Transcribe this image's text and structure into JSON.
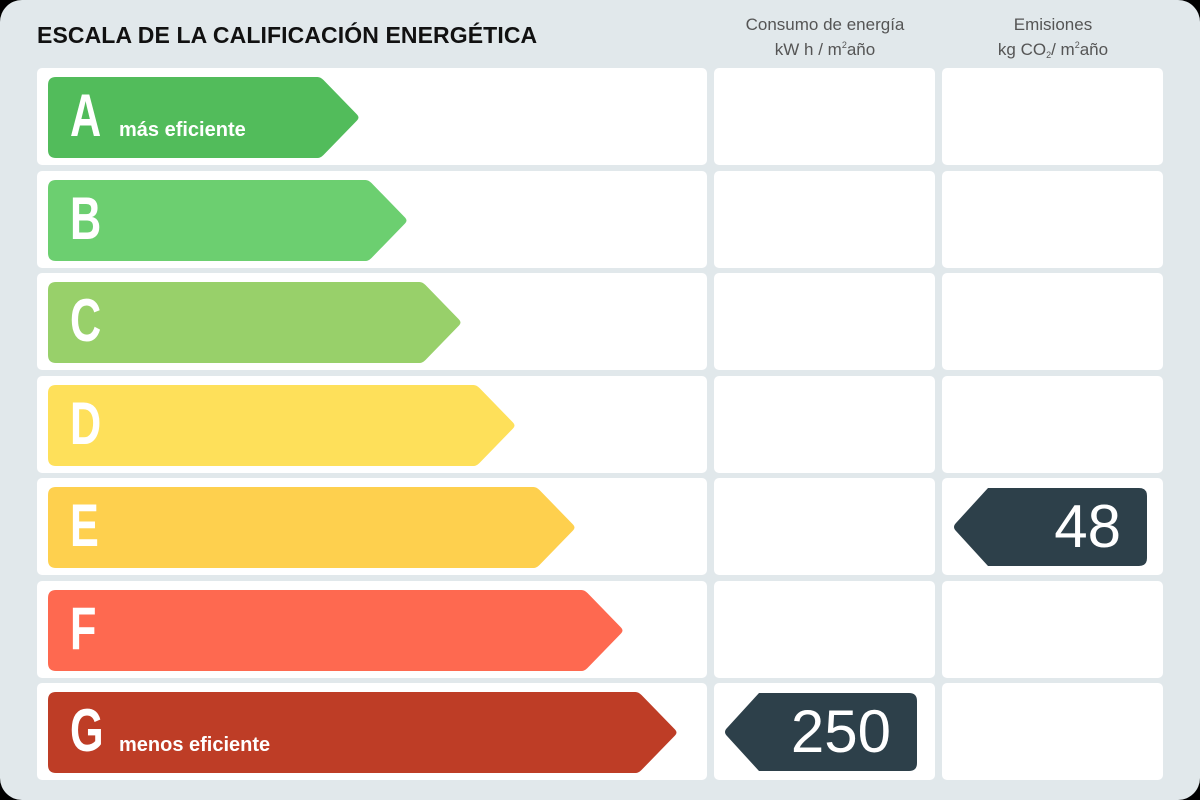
{
  "header": {
    "title": "ESCALA DE LA CALIFICACIÓN ENERGÉTICA",
    "col_consumo_line1": "Consumo de energía",
    "col_consumo_unit_a": "kW h / m",
    "col_consumo_unit_sup": "2",
    "col_consumo_unit_b": "año",
    "col_emisiones_line1": "Emisiones",
    "col_emisiones_unit_a": "kg CO",
    "col_emisiones_unit_sub": "2",
    "col_emisiones_unit_b": "/ m",
    "col_emisiones_unit_sup": "2",
    "col_emisiones_unit_c": "año"
  },
  "ratings": [
    {
      "letter": "A",
      "label": "más eficiente",
      "color": "#52BC5B",
      "tip_x": 360
    },
    {
      "letter": "B",
      "label": "",
      "color": "#6CCF70",
      "tip_x": 408
    },
    {
      "letter": "C",
      "label": "",
      "color": "#98D06A",
      "tip_x": 462
    },
    {
      "letter": "D",
      "label": "",
      "color": "#FEE05A",
      "tip_x": 516
    },
    {
      "letter": "E",
      "label": "",
      "color": "#FED04E",
      "tip_x": 576
    },
    {
      "letter": "F",
      "label": "",
      "color": "#FE6950",
      "tip_x": 624
    },
    {
      "letter": "G",
      "label": "menos eficiente",
      "color": "#BE3D26",
      "tip_x": 678
    }
  ],
  "indicators": {
    "consumo": {
      "value": "250",
      "row": "G",
      "color": "#2D404A"
    },
    "emisiones": {
      "value": "48",
      "row": "E",
      "color": "#2D404A"
    }
  },
  "chart_data": {
    "type": "table",
    "title": "ESCALA DE LA CALIFICACIÓN ENERGÉTICA",
    "categories": [
      "A",
      "B",
      "C",
      "D",
      "E",
      "F",
      "G"
    ],
    "columns": [
      "Consumo de energía kW h / m²año",
      "Emisiones kg CO₂/ m²año"
    ],
    "scale_labels": {
      "A": "más eficiente",
      "G": "menos eficiente"
    },
    "series": [
      {
        "name": "Consumo de energía (kW h / m²año)",
        "rating": "G",
        "value": 250
      },
      {
        "name": "Emisiones (kg CO₂/ m²año)",
        "rating": "E",
        "value": 48
      }
    ]
  }
}
